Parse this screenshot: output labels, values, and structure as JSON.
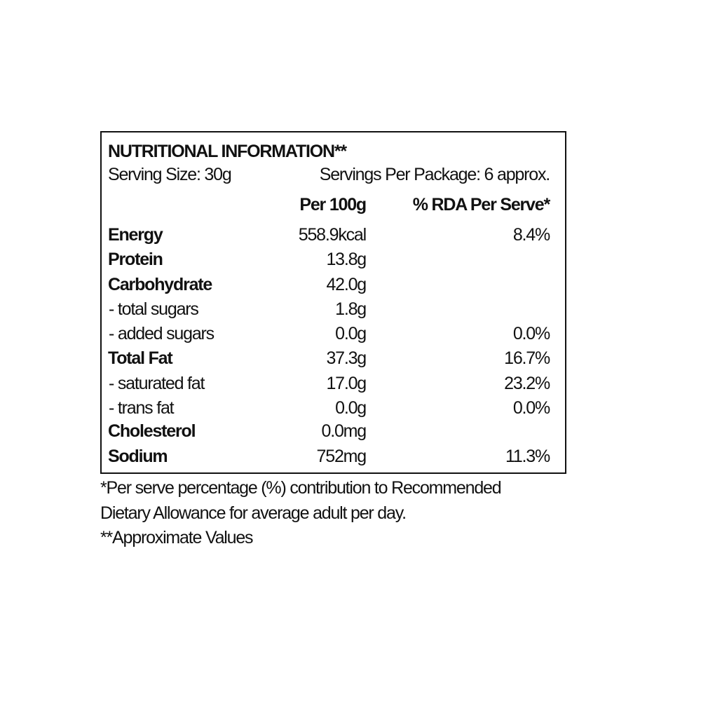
{
  "title": "NUTRITIONAL INFORMATION**",
  "serving_size": "Serving Size: 30g",
  "servings_per_package": "Servings Per Package: 6 approx.",
  "columns": [
    "Per 100g",
    "% RDA Per Serve*"
  ],
  "rows": [
    {
      "label": "Energy",
      "bold": true,
      "per100": "558.9kcal",
      "rda": "8.4%"
    },
    {
      "label": "Protein",
      "bold": true,
      "per100": "13.8g",
      "rda": ""
    },
    {
      "label": "Carbohydrate",
      "bold": true,
      "per100": "42.0g",
      "rda": ""
    },
    {
      "label": " - total sugars",
      "bold": false,
      "per100": "1.8g",
      "rda": ""
    },
    {
      "label": " - added sugars",
      "bold": false,
      "per100": "0.0g",
      "rda": "0.0%"
    },
    {
      "label": "Total Fat",
      "bold": true,
      "per100": "37.3g",
      "rda": "16.7%"
    },
    {
      "label": " - saturated fat",
      "bold": false,
      "per100": "17.0g",
      "rda": "23.2%"
    },
    {
      "label": " - trans fat",
      "bold": false,
      "per100": "0.0g",
      "rda": "0.0%"
    },
    {
      "label": "Cholesterol",
      "bold": true,
      "per100": "0.0mg",
      "rda": ""
    },
    {
      "label": "Sodium",
      "bold": true,
      "per100": "752mg",
      "rda": "11.3%"
    }
  ],
  "footnotes": [
    "*Per serve percentage (%) contribution to Recommended",
    "Dietary Allowance for average adult per day.",
    "**Approximate Values"
  ]
}
